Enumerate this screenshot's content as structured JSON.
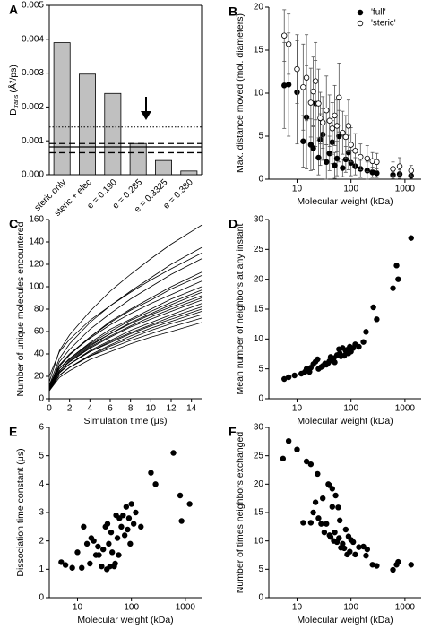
{
  "chart_data": [
    {
      "panel": "A",
      "type": "bar",
      "y_label": "D",
      "y_label_sub": "trans",
      "y_label_unit": "(Å²/ps)",
      "categories": [
        "steric only",
        "steric + elec",
        "e = 0.190",
        "e = 0.285",
        "e = 0.3325",
        "e = 0.380"
      ],
      "values": [
        0.0039,
        0.00297,
        0.0024,
        0.00092,
        0.00042,
        0.00011
      ],
      "color": "#c0c0c0",
      "ylim": [
        0,
        0.005
      ],
      "yticks": [
        {
          "value": 0,
          "label": "0.000"
        },
        {
          "value": 0.001,
          "label": "0.001"
        },
        {
          "value": 0.002,
          "label": "0.002"
        },
        {
          "value": 0.003,
          "label": "0.003"
        },
        {
          "value": 0.004,
          "label": "0.004"
        },
        {
          "value": 0.005,
          "label": "0.005"
        }
      ],
      "reference_lines": [
        {
          "value": 0.00141,
          "style": "dotted"
        },
        {
          "value": 0.00092,
          "style": "dashed"
        },
        {
          "value": 0.00082,
          "style": "solid"
        },
        {
          "value": 0.00065,
          "style": "dashed"
        }
      ]
    },
    {
      "panel": "B",
      "type": "scatter",
      "x_label": "Molecular weight (kDa)",
      "y_label": "Max. distance moved (mol. diameters)",
      "xlog": true,
      "xlim": [
        3,
        2000
      ],
      "xticks": [
        10,
        100,
        1000
      ],
      "ylim": [
        0,
        20
      ],
      "yticks": [
        0,
        5,
        10,
        15,
        20
      ],
      "legend": "upper right",
      "series": [
        {
          "name": "'full'",
          "color": "#000000",
          "fill": "#000000",
          "x": [
            5.8,
            7,
            10,
            13,
            15,
            18,
            20,
            22,
            25,
            27,
            30,
            35,
            40,
            45,
            50,
            55,
            60,
            70,
            80,
            90,
            100,
            120,
            150,
            200,
            250,
            300,
            600,
            800,
            1300
          ],
          "values": [
            10.9,
            11,
            10.1,
            4.4,
            7.2,
            4.0,
            3.6,
            8.8,
            2.5,
            4.6,
            5.2,
            2.0,
            3.0,
            4.3,
            1.6,
            2.4,
            5.0,
            1.3,
            2.3,
            3.1,
            1.9,
            1.5,
            1.2,
            1.0,
            0.8,
            0.7,
            0.5,
            0.6,
            0.4
          ],
          "errors": [
            5,
            6,
            6,
            3,
            6,
            3,
            2.5,
            5,
            2,
            3,
            3,
            2,
            2,
            2.5,
            1.5,
            2,
            3,
            1,
            1.5,
            2,
            1.5,
            1,
            1,
            1,
            0.6,
            0.5,
            0.4,
            0.5,
            0.3
          ]
        },
        {
          "name": "'steric'",
          "color": "#000000",
          "fill": "#ffffff",
          "x": [
            5.8,
            7,
            10,
            13,
            15,
            18,
            20,
            22,
            25,
            27,
            30,
            35,
            40,
            45,
            50,
            55,
            60,
            70,
            80,
            90,
            100,
            120,
            150,
            200,
            250,
            300,
            600,
            800,
            1300
          ],
          "values": [
            16.7,
            15.7,
            12.8,
            10.7,
            11.8,
            8.9,
            10.2,
            11.4,
            8.8,
            7.1,
            6.6,
            8.0,
            6.8,
            5.9,
            7.4,
            6.2,
            9.5,
            5.4,
            4.9,
            6.2,
            4.0,
            3.3,
            2.6,
            2.4,
            2.1,
            2.0,
            1.2,
            1.5,
            1.0
          ],
          "errors": [
            3,
            3.5,
            4,
            5,
            5,
            4,
            4,
            4.5,
            4,
            3,
            3,
            4,
            3,
            3,
            3.5,
            3,
            4,
            2.5,
            2.5,
            3,
            2,
            2,
            1.5,
            1.5,
            1,
            1,
            0.8,
            1,
            0.6
          ]
        }
      ]
    },
    {
      "panel": "C",
      "type": "line",
      "x_label": "Simulation time (μs)",
      "y_label": "Number of unique molecules encountered",
      "xlim": [
        0,
        15
      ],
      "xticks": [
        0,
        2,
        4,
        6,
        8,
        10,
        12,
        14
      ],
      "ylim": [
        0,
        160
      ],
      "yticks": [
        0,
        20,
        40,
        60,
        80,
        100,
        120,
        140,
        160
      ],
      "x": [
        0,
        1,
        2,
        4,
        6,
        8,
        10,
        12,
        15
      ],
      "series": [
        {
          "color": "#000000",
          "values": [
            15,
            43,
            57,
            78,
            96,
            111,
            125,
            138,
            155
          ]
        },
        {
          "color": "#000000",
          "values": [
            12,
            36,
            49,
            68,
            83,
            96,
            108,
            120,
            135
          ]
        },
        {
          "color": "#000000",
          "values": [
            20,
            42,
            53,
            70,
            83,
            95,
            106,
            116,
            130
          ]
        },
        {
          "color": "#000000",
          "values": [
            10,
            33,
            44,
            62,
            76,
            89,
            100,
            111,
            125
          ]
        },
        {
          "color": "#000000",
          "values": [
            8,
            29,
            39,
            55,
            69,
            80,
            90,
            100,
            113
          ]
        },
        {
          "color": "#000000",
          "values": [
            10,
            30,
            40,
            55,
            68,
            79,
            88,
            98,
            110
          ]
        },
        {
          "color": "#000000",
          "values": [
            12,
            30,
            40,
            54,
            66,
            76,
            85,
            93,
            105
          ]
        },
        {
          "color": "#000000",
          "values": [
            9,
            27,
            36,
            50,
            62,
            71,
            80,
            89,
            100
          ]
        },
        {
          "color": "#000000",
          "values": [
            10,
            27,
            36,
            49,
            60,
            70,
            78,
            86,
            97
          ]
        },
        {
          "color": "#000000",
          "values": [
            8,
            25,
            34,
            47,
            58,
            68,
            76,
            84,
            95
          ]
        },
        {
          "color": "#000000",
          "values": [
            11,
            27,
            35,
            48,
            58,
            67,
            75,
            82,
            92
          ]
        },
        {
          "color": "#000000",
          "values": [
            9,
            25,
            33,
            46,
            56,
            65,
            73,
            80,
            90
          ]
        },
        {
          "color": "#000000",
          "values": [
            10,
            25,
            33,
            45,
            55,
            64,
            71,
            78,
            88
          ]
        },
        {
          "color": "#000000",
          "values": [
            8,
            23,
            31,
            43,
            52,
            61,
            68,
            75,
            85
          ]
        },
        {
          "color": "#000000",
          "values": [
            9,
            23,
            31,
            42,
            51,
            59,
            66,
            73,
            82
          ]
        },
        {
          "color": "#000000",
          "values": [
            10,
            24,
            31,
            42,
            50,
            58,
            65,
            71,
            80
          ]
        },
        {
          "color": "#000000",
          "values": [
            7,
            21,
            28,
            39,
            48,
            56,
            63,
            69,
            78
          ]
        },
        {
          "color": "#000000",
          "values": [
            8,
            21,
            28,
            38,
            47,
            54,
            61,
            67,
            75
          ]
        },
        {
          "color": "#000000",
          "values": [
            9,
            21,
            28,
            38,
            45,
            52,
            58,
            64,
            72
          ]
        },
        {
          "color": "#000000",
          "values": [
            7,
            19,
            25,
            35,
            42,
            49,
            55,
            60,
            68
          ]
        }
      ]
    },
    {
      "panel": "D",
      "type": "scatter",
      "x_label": "Molecular weight (kDa)",
      "y_label": "Mean number of neighbors at any instant",
      "xlog": true,
      "xlim": [
        3,
        2000
      ],
      "xticks": [
        10,
        100,
        1000
      ],
      "ylim": [
        0,
        30
      ],
      "yticks": [
        0,
        5,
        10,
        15,
        20,
        25,
        30
      ],
      "series": [
        {
          "color": "#000000",
          "fill": "#000000",
          "x": [
            5.8,
            7,
            9,
            12,
            14,
            15,
            17,
            18,
            20,
            22,
            24,
            25,
            28,
            30,
            33,
            35,
            38,
            40,
            42,
            45,
            48,
            50,
            55,
            60,
            62,
            65,
            70,
            75,
            80,
            85,
            90,
            95,
            100,
            110,
            120,
            140,
            170,
            190,
            260,
            300,
            600,
            700,
            750,
            1300
          ],
          "values": [
            3.3,
            3.6,
            3.9,
            4.2,
            4.5,
            5,
            4.5,
            5.2,
            5.8,
            6.2,
            6.6,
            5,
            5.3,
            5.5,
            5.9,
            5.7,
            6,
            6.3,
            7,
            6.5,
            6.8,
            6.1,
            7.3,
            8.3,
            7.6,
            7.1,
            8.5,
            7.2,
            8,
            8.2,
            7.6,
            8.7,
            7.9,
            8.5,
            9.1,
            8.7,
            9.5,
            11.2,
            15.3,
            13.3,
            18.5,
            22.3,
            20,
            26.9
          ]
        }
      ]
    },
    {
      "panel": "E",
      "type": "scatter",
      "x_label": "Molecular weight (kDa)",
      "y_label": "Dissociation time constant (μs)",
      "xlog": true,
      "xlim": [
        3,
        2000
      ],
      "xticks": [
        10,
        100,
        1000
      ],
      "ylim": [
        0,
        6
      ],
      "yticks": [
        0,
        1,
        2,
        3,
        4,
        5,
        6
      ],
      "series": [
        {
          "color": "#000000",
          "fill": "#000000",
          "x": [
            5,
            6,
            8,
            10,
            12,
            13,
            15,
            17,
            18,
            20,
            22,
            24,
            25,
            28,
            30,
            33,
            35,
            36,
            38,
            40,
            42,
            44,
            48,
            50,
            52,
            55,
            58,
            60,
            65,
            70,
            75,
            80,
            85,
            90,
            95,
            100,
            110,
            120,
            150,
            230,
            280,
            600,
            800,
            850,
            1200
          ],
          "values": [
            1.25,
            1.15,
            1.05,
            1.6,
            1.05,
            2.5,
            1.9,
            1.2,
            2.1,
            2.0,
            1.5,
            1.8,
            1.5,
            1.1,
            1.7,
            2.5,
            1.0,
            2.6,
            1.9,
            1.1,
            2.3,
            1.6,
            1.1,
            1.2,
            2.9,
            2.1,
            1.5,
            2.8,
            2.5,
            2.9,
            2.2,
            3.2,
            2.4,
            2.8,
            1.9,
            3.3,
            2.6,
            3.0,
            2.5,
            4.4,
            4.0,
            5.1,
            3.6,
            2.7,
            3.3
          ]
        }
      ]
    },
    {
      "panel": "F",
      "type": "scatter",
      "x_label": "Molecular weight (kDa)",
      "y_label": "Number of times neighbors exchanged",
      "xlog": true,
      "xlim": [
        3,
        2000
      ],
      "xticks": [
        10,
        100,
        1000
      ],
      "ylim": [
        0,
        30
      ],
      "yticks": [
        0,
        5,
        10,
        15,
        20,
        25,
        30
      ],
      "series": [
        {
          "color": "#000000",
          "fill": "#000000",
          "x": [
            5.5,
            7,
            10,
            13,
            15,
            18,
            18,
            20,
            22,
            24,
            25,
            28,
            30,
            32,
            35,
            38,
            40,
            40,
            42,
            45,
            45,
            48,
            50,
            52,
            55,
            58,
            60,
            62,
            65,
            70,
            75,
            80,
            85,
            90,
            95,
            100,
            110,
            120,
            140,
            170,
            190,
            200,
            250,
            300,
            600,
            700,
            750,
            1300
          ],
          "values": [
            24.5,
            27.6,
            26.1,
            13.2,
            24,
            23.5,
            13.2,
            15,
            16.8,
            21.8,
            14,
            13,
            17.5,
            11.5,
            13,
            20,
            19.8,
            11,
            10.7,
            19.2,
            16,
            10,
            11.5,
            18,
            9.8,
            15.9,
            10.5,
            13.6,
            8.8,
            9.5,
            8.7,
            12,
            7.6,
            10.8,
            8.1,
            10.2,
            9.8,
            7.6,
            8.9,
            9,
            7.4,
            8.5,
            5.8,
            5.6,
            4.9,
            5.8,
            6.3,
            5.8
          ]
        }
      ]
    }
  ]
}
